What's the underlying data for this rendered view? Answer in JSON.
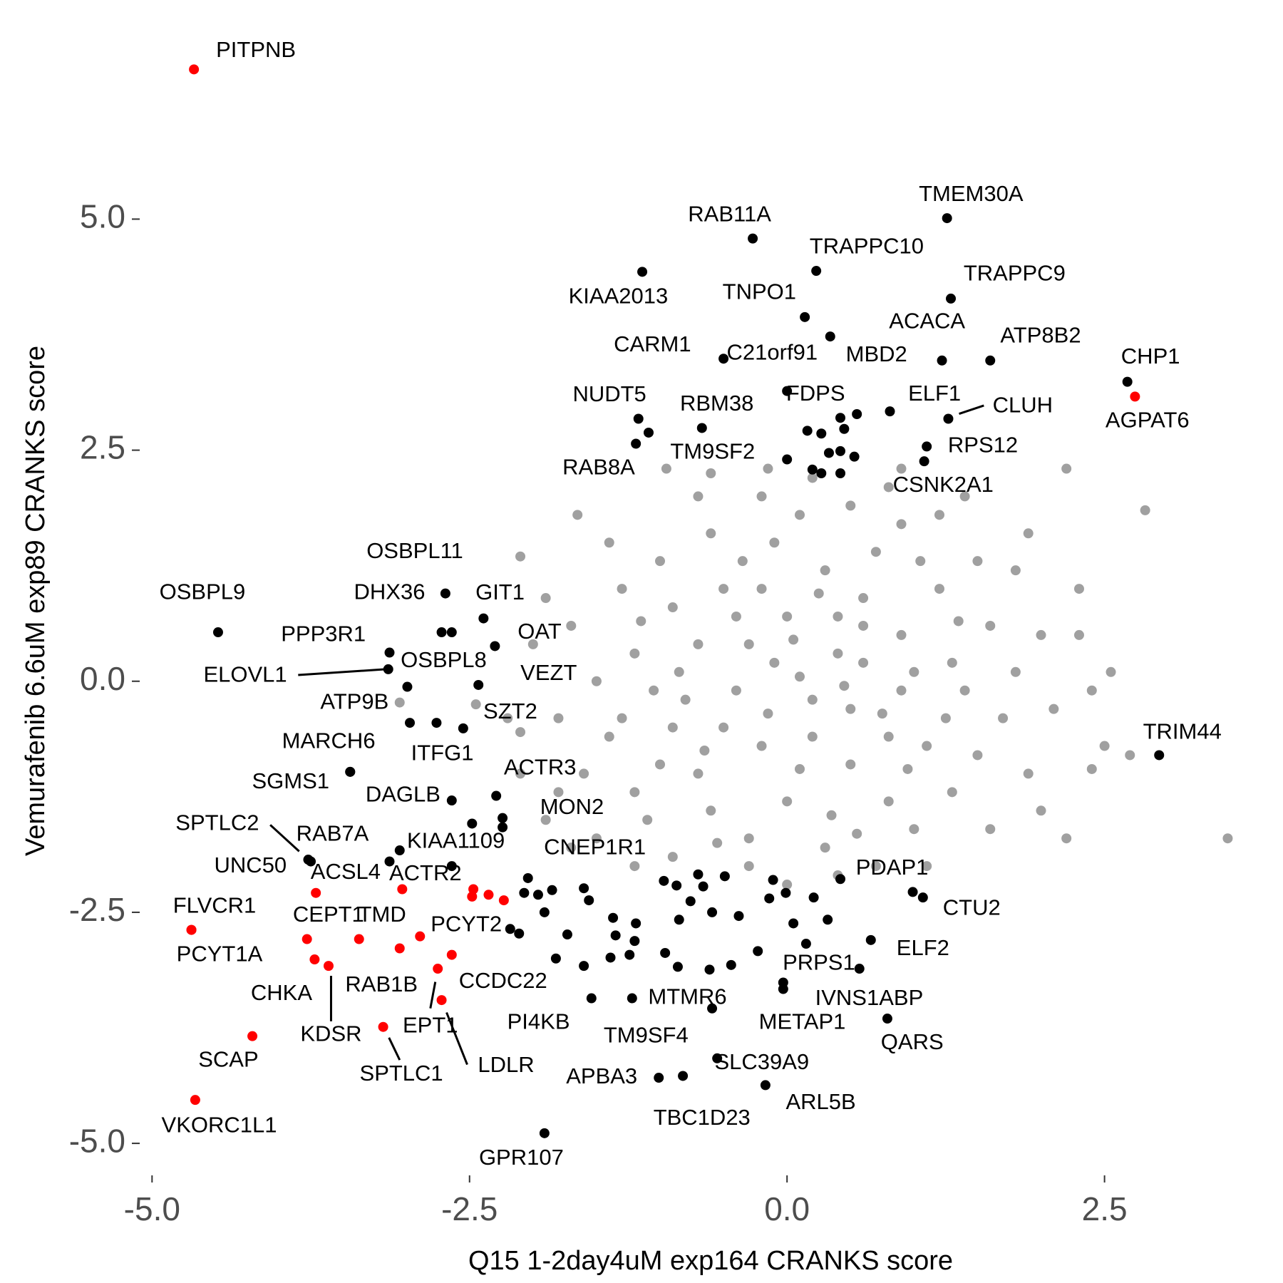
{
  "chart_data": {
    "type": "scatter",
    "xlabel": "Q15 1-2day4uM exp164 CRANKS score",
    "ylabel": "Vemurafenib 6.6uM exp89 CRANKS score",
    "xlim": [
      -5.1,
      3.6
    ],
    "ylim": [
      -5.3,
      6.8
    ],
    "xticks": [
      {
        "value": -5,
        "label": "-5.0"
      },
      {
        "value": -2.5,
        "label": "-2.5"
      },
      {
        "value": 0,
        "label": "0.0"
      },
      {
        "value": 2.5,
        "label": "2.5"
      }
    ],
    "yticks": [
      {
        "value": -5,
        "label": "-5.0"
      },
      {
        "value": -2.5,
        "label": "-2.5"
      },
      {
        "value": 0,
        "label": "0.0"
      },
      {
        "value": 2.5,
        "label": "2.5"
      },
      {
        "value": 5,
        "label": "5.0"
      }
    ],
    "grid": false,
    "series": [
      {
        "color": "#a0a0a0",
        "x": [
          0.1,
          -0.3,
          0.5,
          -0.8,
          0.9,
          -0.5,
          0.3,
          1.1,
          -1.0,
          0.0,
          0.6,
          -0.2,
          1.3,
          -1.2,
          0.2,
          -0.6,
          0.8,
          1.4,
          -1.3,
          0.4,
          -0.1,
          0.7,
          -0.9,
          1.2,
          -0.4,
          0.0,
          0.9,
          -0.7,
          0.5,
          -0.3,
          0.3,
          1.0,
          -1.1,
          1.5,
          -1.4,
          1.6,
          -1.3,
          0.1,
          -0.6,
          0.9,
          -0.1,
          0.6,
          -0.5,
          0.2,
          1.0,
          -0.9,
          0.4,
          -0.2,
          0.8,
          -0.7,
          1.3,
          -1.2,
          1.7,
          -1.5,
          1.5,
          -1.0,
          0.5,
          -0.3,
          0.7,
          -0.9,
          1.8,
          1.9,
          2.0,
          -1.6,
          -1.7,
          1.2,
          -0.2,
          0.2,
          0.8,
          -0.7,
          1.6,
          -1.5,
          2.1,
          -1.8,
          1.8,
          -1.4,
          0.0,
          0.4,
          1.1,
          -1.2,
          2.2,
          2.82,
          3.47,
          2.2,
          2.55,
          2.5,
          2.4,
          2.3,
          1.9,
          2.0,
          -2.1,
          -2.45,
          -2.1,
          -3.05,
          -1.8,
          -1.9,
          -2.1,
          -1.65,
          -0.95,
          -0.15,
          -0.6,
          0.9,
          2.7,
          -1.7,
          1.4,
          -2.0,
          -2.2,
          -1.9,
          2.3,
          2.4,
          0.6,
          -0.4,
          0.1,
          0.95,
          -0.85,
          1.25,
          -1.05,
          0.35,
          -0.35,
          1.05,
          -1.15,
          0.55,
          -0.55,
          1.35,
          -0.15,
          0.25,
          0.75,
          -0.65,
          0.05,
          0.45
        ],
        "values": [
          0.05,
          0.4,
          -0.3,
          -0.2,
          0.5,
          1.0,
          1.2,
          -0.7,
          -0.9,
          -1.3,
          0.9,
          -0.7,
          0.2,
          0.3,
          -0.6,
          -1.4,
          -1.3,
          -0.1,
          -0.4,
          0.3,
          1.5,
          1.4,
          0.8,
          1.0,
          -0.1,
          0.7,
          -0.1,
          0.4,
          -0.9,
          -1.7,
          -1.8,
          -1.6,
          -1.5,
          -0.8,
          -0.6,
          0.6,
          1.0,
          1.8,
          1.6,
          1.7,
          0.2,
          0.2,
          -0.5,
          -0.2,
          0.1,
          -0.5,
          0.7,
          1.0,
          -0.6,
          -1.0,
          -1.2,
          -1.2,
          -0.4,
          0.0,
          1.3,
          1.3,
          1.9,
          -2.0,
          -2.0,
          -1.9,
          0.1,
          -1.0,
          0.5,
          -1.0,
          0.6,
          1.8,
          2.0,
          2.2,
          2.1,
          2.0,
          -1.6,
          -1.7,
          -0.3,
          -0.4,
          1.2,
          1.5,
          -2.2,
          -2.1,
          -2.0,
          -2.0,
          2.3,
          1.85,
          -1.7,
          -1.7,
          0.1,
          -0.7,
          -0.95,
          0.5,
          1.6,
          -1.4,
          1.35,
          -0.25,
          -0.55,
          -0.23,
          -1.2,
          -1.5,
          -1.0,
          1.8,
          2.3,
          2.3,
          2.25,
          2.3,
          -0.8,
          -1.8,
          2.0,
          0.4,
          -0.4,
          0.9,
          1.0,
          -0.1,
          0.6,
          0.7,
          -0.95,
          -0.95,
          0.1,
          -0.4,
          -0.1,
          -1.45,
          1.3,
          1.3,
          0.65,
          -1.65,
          -1.75,
          0.65,
          -0.35,
          0.95,
          -0.35,
          -0.75,
          0.45,
          -0.05
        ]
      },
      {
        "color": "#000000",
        "x": [
          1.26,
          -0.27,
          0.23,
          -1.14,
          1.29,
          0.14,
          0.34,
          1.22,
          1.6,
          -0.5,
          0.0,
          2.68,
          -1.17,
          -0.67,
          0.42,
          0.81,
          1.27,
          1.1,
          1.08,
          0.0,
          -1.19,
          -2.69,
          -4.48,
          -2.72,
          -2.39,
          -3.13,
          -2.3,
          -3.14,
          -2.99,
          -2.43,
          -2.97,
          -2.76,
          -2.55,
          -3.44,
          -3.44,
          -2.64,
          -2.29,
          -2.24,
          -3.05,
          -3.13,
          -3.77,
          -3.75,
          -2.04,
          0.99,
          1.07,
          0.66,
          0.57,
          -0.03,
          -0.03,
          0.79,
          -1.22,
          -1.54,
          -0.59,
          -0.55,
          -1.01,
          -0.82,
          -0.17,
          -1.91,
          2.93,
          -1.09,
          0.16,
          0.27,
          0.45,
          0.55,
          0.33,
          0.42,
          0.53,
          0.2,
          0.27,
          0.42,
          -2.64,
          -2.24,
          -2.48,
          -2.64,
          -2.07,
          -1.96,
          -1.91,
          -1.85,
          -1.6,
          -1.56,
          -1.37,
          -1.35,
          -1.2,
          -1.24,
          -1.39,
          -1.6,
          -1.82,
          -1.73,
          -2.18,
          -2.11,
          -0.97,
          -0.87,
          -0.7,
          -0.66,
          -0.76,
          -0.59,
          -0.49,
          -0.38,
          -0.96,
          -0.86,
          -0.61,
          -0.44,
          -0.23,
          -0.11,
          -0.01,
          0.05,
          0.15,
          0.21,
          0.32,
          0.42,
          -0.14,
          -0.85,
          -1.19
        ],
        "values": [
          5.01,
          4.79,
          4.44,
          4.43,
          4.14,
          3.94,
          3.73,
          3.47,
          3.47,
          3.49,
          3.14,
          3.24,
          2.84,
          2.74,
          2.85,
          2.92,
          2.84,
          2.54,
          2.38,
          2.4,
          2.57,
          0.95,
          0.53,
          0.53,
          0.68,
          0.31,
          0.38,
          0.13,
          -0.06,
          -0.04,
          -0.45,
          -0.45,
          -0.51,
          -0.98,
          -0.98,
          -1.29,
          -1.24,
          -1.48,
          -1.83,
          -1.95,
          -1.93,
          -1.95,
          -2.13,
          -2.28,
          -2.34,
          -2.8,
          -3.11,
          -3.26,
          -3.33,
          -3.65,
          -3.43,
          -3.43,
          -3.54,
          -4.08,
          -4.29,
          -4.27,
          -4.37,
          -4.89,
          -0.8,
          2.69,
          2.71,
          2.68,
          2.73,
          2.89,
          2.47,
          2.49,
          2.43,
          2.29,
          2.25,
          2.25,
          0.53,
          -1.58,
          -1.54,
          -2.0,
          -2.29,
          -2.31,
          -2.5,
          -2.26,
          -2.24,
          -2.37,
          -2.56,
          -2.75,
          -2.81,
          -2.96,
          -2.99,
          -3.08,
          -3.0,
          -2.74,
          -2.68,
          -2.73,
          -2.16,
          -2.21,
          -2.09,
          -2.22,
          -2.38,
          -2.5,
          -2.11,
          -2.54,
          -2.94,
          -3.09,
          -3.12,
          -3.07,
          -2.92,
          -2.15,
          -2.29,
          -2.62,
          -2.84,
          -2.34,
          -2.58,
          -2.14,
          -2.35,
          -2.58,
          -2.62
        ],
        "labels": [
          "TMEM30A",
          "RAB11A",
          "TRAPPC10",
          "KIAA2013",
          "TRAPPC9",
          "TNPO1",
          "MBD2",
          "ACACA",
          "ATP8B2",
          "CARM1",
          "C21orf91",
          "CHP1",
          "NUDT5",
          "RBM38",
          "FDPS",
          "ELF1",
          "CLUH",
          "RPS12",
          "CSNK2A1",
          "TM9SF2",
          "RAB8A",
          "OSBPL11",
          "OSBPL9",
          "DHX36",
          "GIT1",
          "PPP3R1",
          "OAT",
          "ELOVL1",
          "OSBPL8",
          "VEZT",
          "ATP9B",
          "ITFG1",
          "SZT2",
          "MARCH6",
          "SGMS1",
          "DAGLB",
          "ACTR3",
          "MON2",
          "KIAA1109",
          "RAB7A",
          "SPTLC2",
          "UNC50",
          "CNEP1R1",
          "PDAP1",
          "CTU2",
          "ELF2",
          "PRPS1",
          "IVNS1ABP",
          "METAP1",
          "QARS",
          "MTMR6",
          "PI4KB",
          "TM9SF4",
          "SLC39A9",
          "APBA3",
          "TBC1D23",
          "ARL5B",
          "GPR107",
          "TRIM44",
          null,
          null,
          null,
          null,
          null,
          null,
          null,
          null,
          null,
          null,
          null,
          null,
          null,
          null,
          null,
          null,
          null,
          null,
          null,
          null,
          null,
          null,
          null,
          null,
          null,
          null,
          null,
          null,
          null,
          null,
          null,
          null,
          null,
          null,
          null,
          null,
          null,
          null,
          null,
          null,
          null,
          null,
          null,
          null,
          null,
          null,
          null,
          null,
          null,
          null,
          null,
          null,
          null
        ]
      },
      {
        "color": "#ff0000",
        "x": [
          -4.67,
          2.74,
          -4.69,
          -4.69,
          -3.71,
          -3.03,
          -3.78,
          -3.37,
          -3.72,
          -3.61,
          -3.05,
          -2.89,
          -2.75,
          -2.64,
          -2.72,
          -3.18,
          -4.21,
          -4.66,
          -2.48,
          -2.47,
          -2.35,
          -2.23
        ],
        "values": [
          6.62,
          3.08,
          -2.69,
          -2.69,
          -2.29,
          -2.25,
          -2.79,
          -2.79,
          -3.01,
          -3.08,
          -2.89,
          -2.76,
          -3.11,
          -2.96,
          -3.45,
          -3.74,
          -3.84,
          -4.53,
          -2.33,
          -2.25,
          -2.31,
          -2.37
        ],
        "labels": [
          "PITPNB",
          "AGPAT6",
          "FLVCR1",
          "PCYT1A",
          "ACSL4",
          "ACTR2",
          "CEPT1",
          "TMD",
          "CHKA",
          "KDSR",
          "RAB1B",
          "PCYT2",
          "EPT1",
          "CCDC22",
          "LDLR",
          "SPTLC1",
          "SCAP",
          "VKORC1L1",
          null,
          null,
          null,
          null
        ]
      }
    ]
  }
}
